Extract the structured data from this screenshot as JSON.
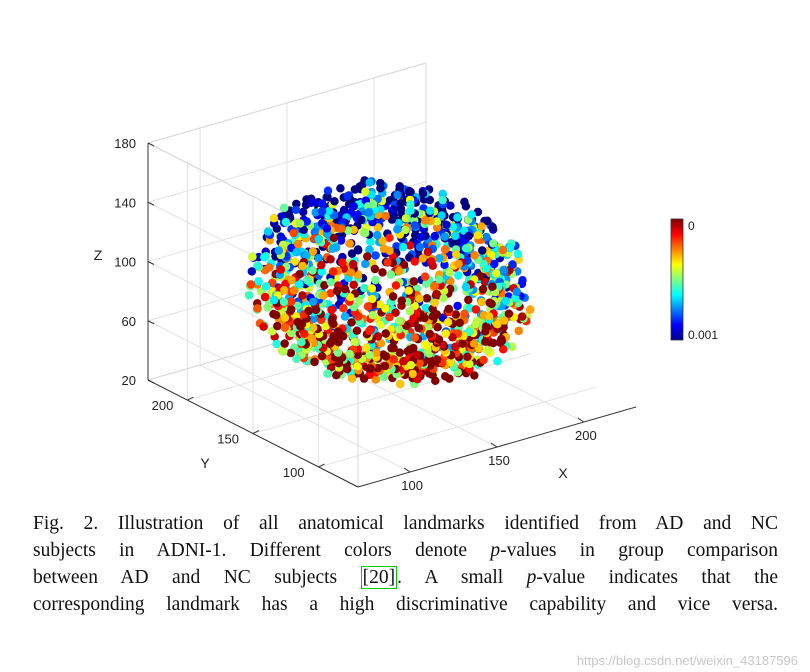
{
  "chart_data": {
    "type": "scatter",
    "projection": "3d",
    "x_ticks": [
      "100",
      "150",
      "200"
    ],
    "y_ticks": [
      "100",
      "150",
      "200"
    ],
    "z_ticks": [
      "20",
      "60",
      "100",
      "140",
      "180"
    ],
    "xlabel": "X",
    "ylabel": "Y",
    "zlabel": "Z",
    "xlim": [
      70,
      230
    ],
    "ylim": [
      70,
      230
    ],
    "zlim": [
      20,
      180
    ],
    "colorbar": {
      "top_label": "0",
      "bottom_label": "0.001",
      "colormap": "jet"
    },
    "point_count": 1500
  },
  "caption": {
    "line1": "Fig. 2.  Illustration of all anatomical landmarks identified from AD and NC",
    "line2_prefix": "subjects in ADNI-1. Different colors denote ",
    "p": "p",
    "line2_suffix": "-values in group comparison",
    "line3_prefix": "between AD and NC subjects ",
    "citation": "[20]",
    "line3_mid": ". A small ",
    "line3_suffix": "-value indicates that the",
    "line4": "corresponding landmark has a high discriminative capability and vice versa."
  },
  "watermark": "https://blog.csdn.net/weixin_43187596"
}
